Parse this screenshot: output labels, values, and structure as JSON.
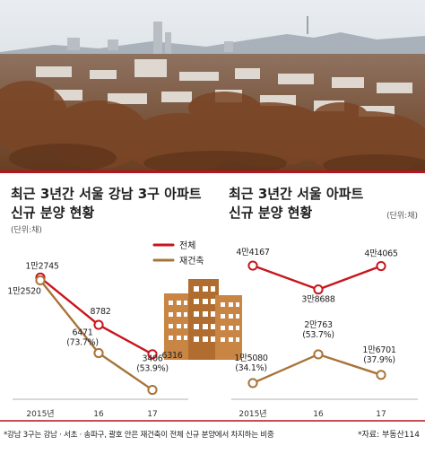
{
  "legend": {
    "total": "전체",
    "rebuild": "재건축",
    "total_color": "#c8161d",
    "rebuild_color": "#a8743a"
  },
  "chart_data": [
    {
      "type": "line",
      "title": [
        "최근 3년간 서울 강남 3구 아파트",
        "신규 분양 현황"
      ],
      "unit": "(단위:채)",
      "categories": [
        "2015년",
        "16",
        "17"
      ],
      "series": [
        {
          "name": "전체",
          "values": [
            12745,
            8782,
            6316
          ],
          "labels": [
            "1만2745",
            "8782",
            "6316"
          ]
        },
        {
          "name": "재건축",
          "values": [
            12520,
            6471,
            3406
          ],
          "labels": [
            "1만2520",
            "6471\n(73.7%)",
            "3406\n(53.9%)"
          ]
        }
      ]
    },
    {
      "type": "line",
      "title": [
        "최근 3년간 서울 아파트",
        "신규 분양 현황"
      ],
      "unit": "(단위:채)",
      "categories": [
        "2015년",
        "16",
        "17"
      ],
      "series": [
        {
          "name": "전체",
          "values": [
            44167,
            38688,
            44065
          ],
          "labels": [
            "4만4167",
            "3만8688",
            "4만4065"
          ]
        },
        {
          "name": "재건축",
          "values": [
            15080,
            20763,
            16701
          ],
          "labels": [
            "1만5080\n(34.1%)",
            "2만763\n(53.7%)",
            "1만6701\n(37.9%)"
          ]
        }
      ]
    }
  ],
  "footnote": "*강남 3구는 강남 · 서초 · 송파구, 괄호 안은 재건축이 전체 신규 분양에서 차지하는 비중",
  "source": "*자료: 부동산114",
  "icon": "apartment-buildings-icon"
}
